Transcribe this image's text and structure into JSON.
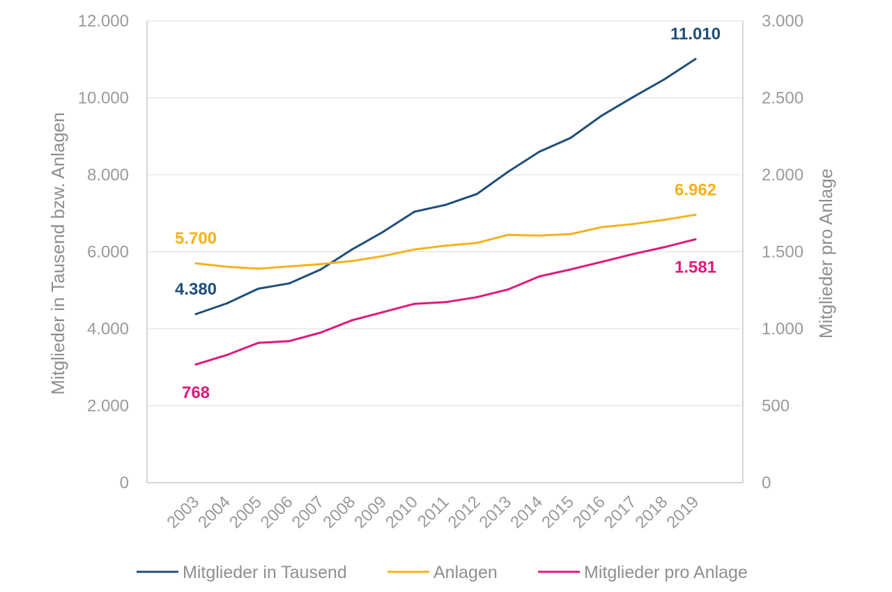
{
  "chart_data": {
    "type": "line",
    "x": [
      "2003",
      "2004",
      "2005",
      "2006",
      "2007",
      "2008",
      "2009",
      "2010",
      "2011",
      "2012",
      "2013",
      "2014",
      "2015",
      "2016",
      "2017",
      "2018",
      "2019"
    ],
    "y_left": {
      "label": "Mitglieder in Tausend bzw. Anlagen",
      "range": [
        0,
        12000
      ],
      "ticks": [
        0,
        2000,
        4000,
        6000,
        8000,
        10000,
        12000
      ],
      "tick_labels": [
        "0",
        "2.000",
        "4.000",
        "6.000",
        "8.000",
        "10.000",
        "12.000"
      ]
    },
    "y_right": {
      "label": "Mitglieder pro Anlage",
      "range": [
        0,
        3000
      ],
      "ticks": [
        0,
        500,
        1000,
        1500,
        2000,
        2500,
        3000
      ],
      "tick_labels": [
        "0",
        "500",
        "1.000",
        "1.500",
        "2.000",
        "2.500",
        "3.000"
      ]
    },
    "grid": true,
    "legend_position": "bottom",
    "series": [
      {
        "name": "Mitglieder in Tausend",
        "axis": "left",
        "color": "#1f4e79",
        "values": [
          4380,
          4660,
          5040,
          5180,
          5540,
          6060,
          6520,
          7040,
          7220,
          7500,
          8080,
          8600,
          8960,
          9540,
          10020,
          10480,
          11010
        ],
        "labels": [
          {
            "index": 0,
            "text": "4.380",
            "position": "above"
          },
          {
            "index": 16,
            "text": "11.010",
            "position": "above"
          }
        ]
      },
      {
        "name": "Anlagen",
        "axis": "left",
        "color": "#f5b21d",
        "values": [
          5700,
          5610,
          5560,
          5620,
          5680,
          5760,
          5890,
          6060,
          6160,
          6230,
          6440,
          6420,
          6460,
          6640,
          6720,
          6830,
          6962
        ],
        "labels": [
          {
            "index": 0,
            "text": "5.700",
            "position": "above"
          },
          {
            "index": 16,
            "text": "6.962",
            "position": "above"
          }
        ]
      },
      {
        "name": "Mitglieder pro Anlage",
        "axis": "right",
        "color": "#e0197b",
        "values": [
          768,
          830,
          908,
          920,
          975,
          1055,
          1108,
          1162,
          1173,
          1205,
          1255,
          1340,
          1385,
          1435,
          1485,
          1530,
          1581
        ],
        "labels": [
          {
            "index": 0,
            "text": "768",
            "position": "below"
          },
          {
            "index": 16,
            "text": "1.581",
            "position": "below"
          }
        ]
      }
    ]
  }
}
